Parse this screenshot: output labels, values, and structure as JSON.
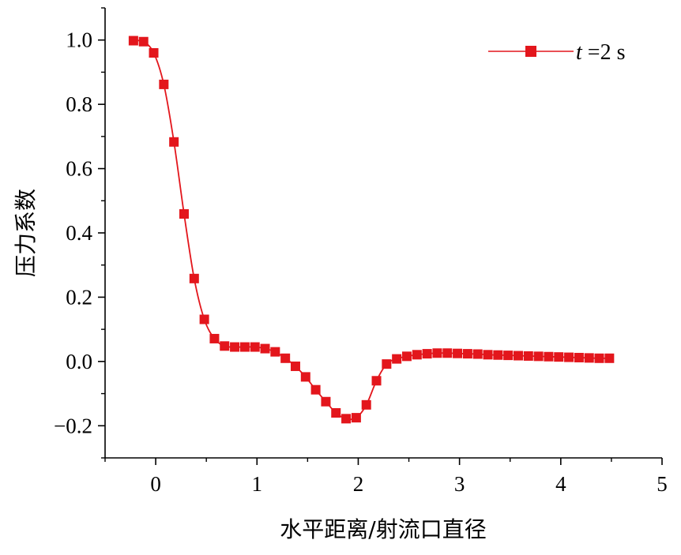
{
  "chart_data": {
    "type": "line",
    "xlabel": "水平距离/射流口直径",
    "ylabel": "压力系数",
    "xlim": [
      -0.5,
      5
    ],
    "ylim": [
      -0.3,
      1.1
    ],
    "xticks": [
      0,
      1,
      2,
      3,
      4,
      5
    ],
    "yticks": [
      -0.2,
      0.0,
      0.2,
      0.4,
      0.6,
      0.8,
      1.0
    ],
    "xtick_labels": [
      "0",
      "1",
      "2",
      "3",
      "4",
      "5"
    ],
    "ytick_labels": [
      "−0.2",
      "0.0",
      "0.2",
      "0.4",
      "0.6",
      "0.8",
      "1.0"
    ],
    "grid": false,
    "legend_position": "top-right",
    "color": "#e3161c",
    "series": [
      {
        "name_italic": "t",
        "name_rest": " =2 s",
        "x": [
          -0.22,
          -0.12,
          -0.02,
          0.08,
          0.18,
          0.28,
          0.38,
          0.48,
          0.58,
          0.68,
          0.78,
          0.88,
          0.98,
          1.08,
          1.18,
          1.28,
          1.38,
          1.48,
          1.58,
          1.68,
          1.78,
          1.88,
          1.98,
          2.08,
          2.18,
          2.28,
          2.38,
          2.48,
          2.58,
          2.68,
          2.78,
          2.88,
          2.98,
          3.08,
          3.18,
          3.28,
          3.38,
          3.48,
          3.58,
          3.68,
          3.78,
          3.88,
          3.98,
          4.08,
          4.18,
          4.28,
          4.38,
          4.48
        ],
        "y": [
          0.998,
          0.995,
          0.96,
          0.862,
          0.683,
          0.459,
          0.258,
          0.131,
          0.071,
          0.048,
          0.045,
          0.045,
          0.045,
          0.04,
          0.03,
          0.01,
          -0.015,
          -0.048,
          -0.088,
          -0.125,
          -0.16,
          -0.178,
          -0.175,
          -0.135,
          -0.06,
          -0.008,
          0.008,
          0.016,
          0.021,
          0.024,
          0.026,
          0.026,
          0.025,
          0.024,
          0.023,
          0.021,
          0.02,
          0.019,
          0.018,
          0.017,
          0.016,
          0.015,
          0.014,
          0.013,
          0.012,
          0.011,
          0.01,
          0.01
        ]
      }
    ]
  }
}
